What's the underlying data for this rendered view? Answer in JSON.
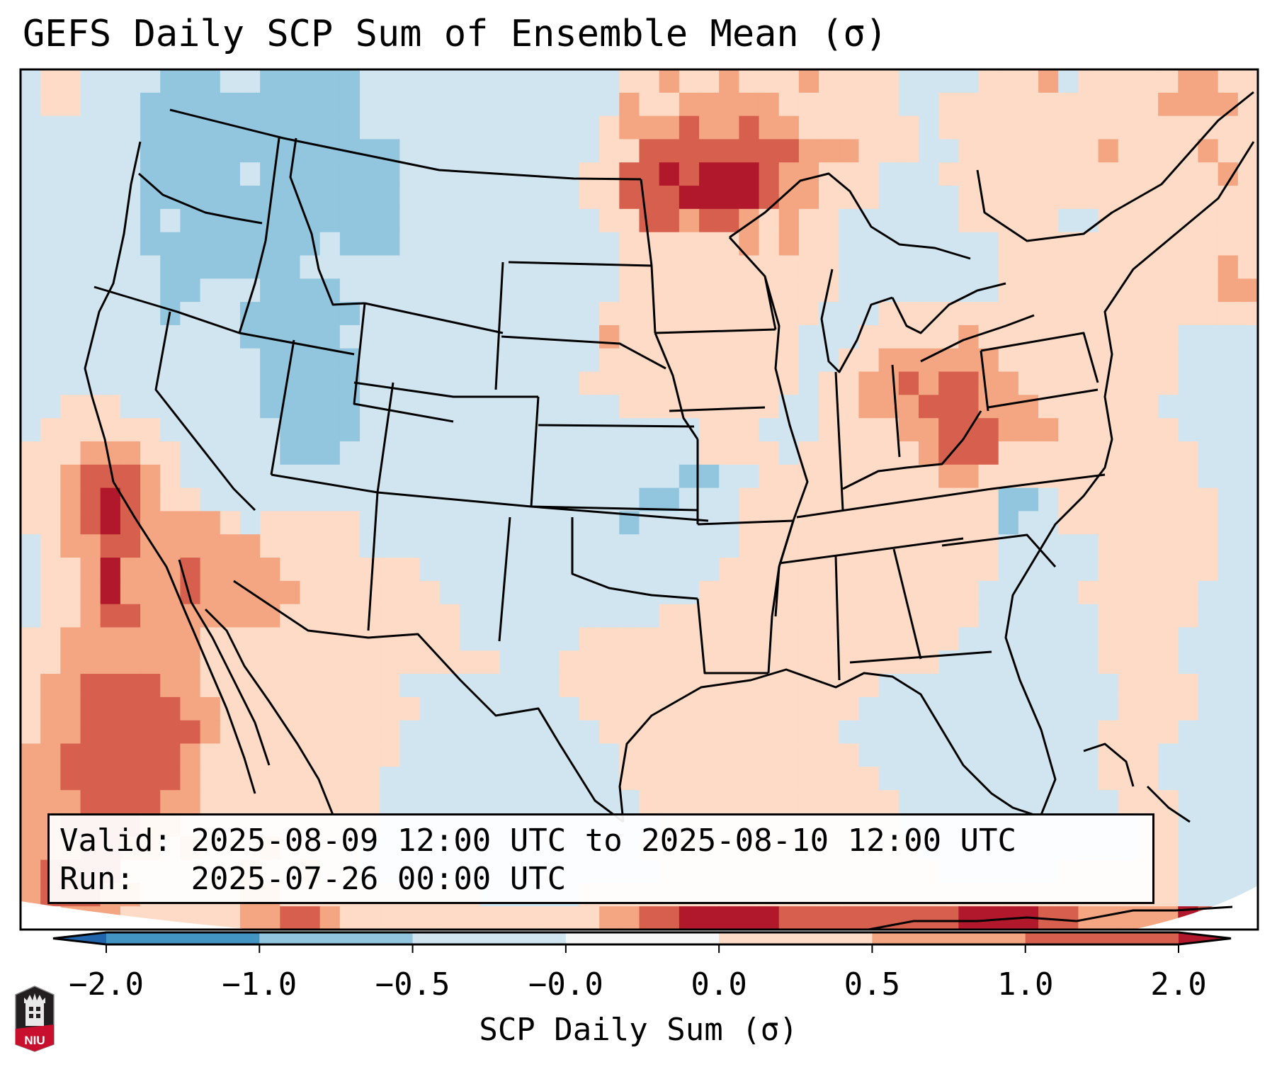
{
  "title": "GEFS Daily SCP Sum of Ensemble Mean (σ)",
  "info": {
    "valid_label": "Valid:",
    "valid_value": "2025-08-09 12:00 UTC to 2025-08-10 12:00 UTC",
    "run_label": "Run:",
    "run_value": "2025-07-26 00:00 UTC"
  },
  "logo": {
    "text": "NIU",
    "icon": "niu-logo-icon"
  },
  "chart_data": {
    "type": "heatmap",
    "title": "GEFS Daily SCP Sum of Ensemble Mean (σ)",
    "colorbar": {
      "label": "SCP Daily Sum (σ)",
      "boundaries": [
        -2.0,
        -1.0,
        -0.5,
        -0.0,
        0.0,
        0.5,
        1.0,
        2.0
      ],
      "tick_labels": [
        "−2.0",
        "−1.0",
        "−0.5",
        "−0.0",
        "0.0",
        "0.5",
        "1.0",
        "2.0"
      ],
      "extend": "both",
      "colors": [
        "#2166ac",
        "#4393c3",
        "#92c5de",
        "#d1e5f0",
        "#f7f7f7",
        "#fddbc7",
        "#f4a582",
        "#d6604d",
        "#b2182b"
      ],
      "categories": [
        "< -2.0",
        "-2.0 to -1.0",
        "-1.0 to -0.5",
        "-0.5 to -0.0",
        "-0.0 to 0.0",
        "0.0 to 0.5",
        "0.5 to 1.0",
        "1.0 to 2.0",
        "> 2.0"
      ]
    },
    "region": "Continental United States, southern Canada, northern Mexico, Gulf of Mexico",
    "field_legend": "grid cell codes: 0=<-2, 1=-2..-1, 2=-1..-0.5, 3=-0.5..0, 4=~0, 5=0..0.5, 6=0.5..1, 7=1..2, 8=>2, .=outside domain",
    "grid_rows": [
      "35533332223322222333333333333355655655565555333355563555556655",
      "35533322222222222333333333333365566666555555335555555555566665",
      "33333322222222222333333333333566676676655555535555555555555555",
      "33333322222222222223333333333557777777766655533555555565555655",
      "33333322222322222223333333335577878887665553335555555555555565",
      "33333322222222222223333333335577788887665553333555555555555555",
      "33333323222222222223333333333557767765655333333555553355555555",
      "33333322222222232223333333333355555565655333333335555555555555",
      "33333332222222333333333333333355555555555333333335555555555565",
      "33333332233322223333333333333355555555555333333335555555555566",
      "33333332333222222333333333333555555555553335555555555555555555",
      "33333333333222223333333333333655555555533355555655555555553333",
      "33333333333322222333333333333555555555533556666665555555553333",
      "33333333333322222333333333335555555555535566767766555555553333",
      "33555333333322222333333333333355555555335566677766655555533333",
      "35555553333332222333333333333333335553335555667776665555553333",
      "55566655333332223333333333333333335555355555567775555555555333",
      "55677765333333333333333333333333322335555555556655555555555333",
      "55678765533333333333333333333332233355555555555552235555555533",
      "55678766665355555333333333333323333355555555555552335555555533",
      "35667766666655555333333333333333333355555555555553333355555533",
      "35568666766665555555333333333333333555555555555553333355555533",
      "35568666766666555555533333333333335555555555555533333555555333",
      "35567766666665555555553333333333555555555555555533333355555333",
      "55666666655555555555553333335555555555555555555333333355553333",
      "55666666655555555555555533355555555555555555553333333355553333",
      "56677776655555555553333333355555555555555553333333333335555333",
      "56677777665555555555333333335555555555555533333333333335555333",
      "56677777765555555553333333333555555555555333333333333355553333",
      "66777777655555555553333333333355555555555533333333333355533333",
      "66777777655555555533333333333355555555555553333333333355533333",
      "66677776655555555533333333333335555555555555333333333335553333",
      "66777766555555555533333333333333555555555555333333333333553333",
      "66677665655565555333333333333335555555555555533333333333553333",
      "67777555555655655333333333333333555555555555553333335555553333",
      "67776655555665555555555333335555555555555555555555555555553333",
      "..6665555556677655555555555556677888887777777778888776666687.."
    ]
  }
}
